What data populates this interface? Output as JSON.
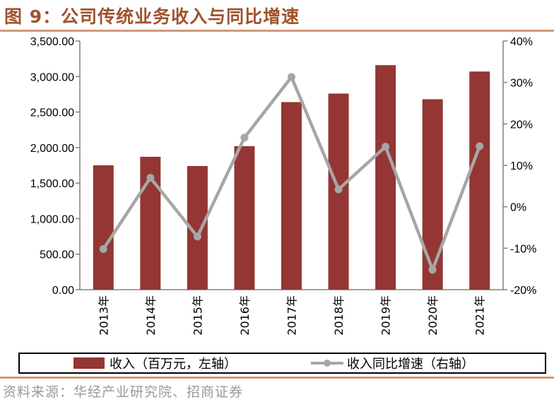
{
  "header": {
    "title": "图 9：公司传统业务收入与同比增速"
  },
  "footer": {
    "source": "资料来源：华经产业研究院、招商证券"
  },
  "colors": {
    "bar": "#943634",
    "line": "#a6a6a6",
    "title": "#a0522d",
    "rule": "#d2997a"
  },
  "chart_data": {
    "type": "bar",
    "title": "",
    "categories": [
      "2013年",
      "2014年",
      "2015年",
      "2016年",
      "2017年",
      "2018年",
      "2019年",
      "2020年",
      "2021年"
    ],
    "series": [
      {
        "name": "收入（百万元，左轴）",
        "type": "bar",
        "axis": "left",
        "values": [
          1750,
          1870,
          1740,
          2020,
          2640,
          2760,
          3160,
          2680,
          3070
        ]
      },
      {
        "name": "收入同比增速（右轴）",
        "type": "line",
        "axis": "right",
        "values": [
          -10.2,
          7.0,
          -7.2,
          16.7,
          31.3,
          4.2,
          14.5,
          -15.2,
          14.6
        ]
      }
    ],
    "y_left": {
      "min": 0,
      "max": 3500,
      "ticks": [
        "0.00",
        "500.00",
        "1,000.00",
        "1,500.00",
        "2,000.00",
        "2,500.00",
        "3,000.00",
        "3,500.00"
      ]
    },
    "y_right": {
      "min": -20,
      "max": 40,
      "ticks": [
        "-20%",
        "-10%",
        "0%",
        "10%",
        "20%",
        "30%",
        "40%"
      ]
    },
    "legend_position": "bottom",
    "grid": false
  }
}
